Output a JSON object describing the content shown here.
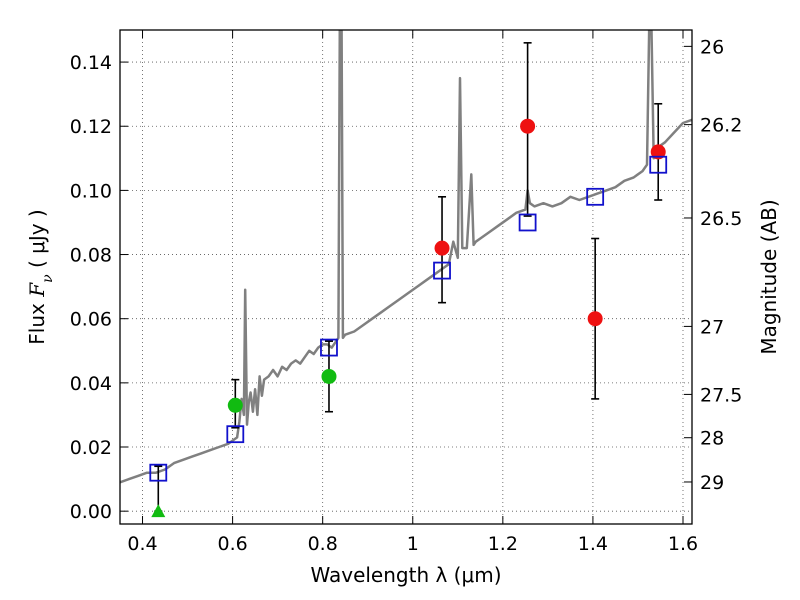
{
  "chart_data": {
    "type": "scatter",
    "xlabel": "Wavelength  λ (μm)",
    "ylabel": "Flux  F_ν  ( μJy )",
    "ylabel_parts": {
      "prefix": "Flux  ",
      "symbol": "F",
      "subscript": "ν",
      "suffix": "  ( μJy )"
    },
    "y2label": "Magnitude (AB)",
    "xlim": [
      0.35,
      1.62
    ],
    "ylim": [
      -0.004,
      0.15
    ],
    "grid": true,
    "x_ticks": [
      0.4,
      0.6,
      0.8,
      1.0,
      1.2,
      1.4,
      1.6
    ],
    "x_tick_labels": [
      "0.4",
      "0.6",
      "0.8",
      "1",
      "1.2",
      "1.4",
      "1.6"
    ],
    "y_ticks": [
      0.0,
      0.02,
      0.04,
      0.06,
      0.08,
      0.1,
      0.12,
      0.14
    ],
    "y_tick_labels": [
      "0.00",
      "0.02",
      "0.04",
      "0.06",
      "0.08",
      "0.10",
      "0.12",
      "0.14"
    ],
    "y2_ticks": [
      {
        "label": "26",
        "flux": 0.1449
      },
      {
        "label": "26.2",
        "flux": 0.1205
      },
      {
        "label": "26.5",
        "flux": 0.0914
      },
      {
        "label": "27",
        "flux": 0.0576
      },
      {
        "label": "27.5",
        "flux": 0.0364
      },
      {
        "label": "28",
        "flux": 0.0229
      },
      {
        "label": "29",
        "flux": 0.0091
      }
    ],
    "colors": {
      "model": "#808080",
      "red_points": "#ee1111",
      "green_points": "#11bb11",
      "squares": "#1111cc",
      "errorbar": "#000000",
      "grid": "#555555"
    },
    "series": [
      {
        "kind": "model-spectrum",
        "x": [
          0.35,
          0.37,
          0.39,
          0.41,
          0.43,
          0.45,
          0.47,
          0.49,
          0.51,
          0.53,
          0.55,
          0.57,
          0.59,
          0.6,
          0.61,
          0.615,
          0.62,
          0.625,
          0.628,
          0.632,
          0.636,
          0.64,
          0.645,
          0.65,
          0.655,
          0.66,
          0.665,
          0.67,
          0.68,
          0.69,
          0.7,
          0.71,
          0.72,
          0.73,
          0.74,
          0.75,
          0.76,
          0.77,
          0.78,
          0.79,
          0.8,
          0.81,
          0.82,
          0.83,
          0.835,
          0.838,
          0.842,
          0.845,
          0.85,
          0.87,
          0.89,
          0.91,
          0.93,
          0.95,
          0.97,
          0.99,
          1.01,
          1.03,
          1.05,
          1.07,
          1.08,
          1.09,
          1.1,
          1.105,
          1.11,
          1.12,
          1.13,
          1.135,
          1.14,
          1.15,
          1.17,
          1.19,
          1.21,
          1.23,
          1.25,
          1.255,
          1.26,
          1.27,
          1.29,
          1.31,
          1.33,
          1.35,
          1.37,
          1.39,
          1.41,
          1.43,
          1.45,
          1.47,
          1.49,
          1.51,
          1.52,
          1.525,
          1.53,
          1.535,
          1.54,
          1.56,
          1.58,
          1.6,
          1.62
        ],
        "y": [
          0.009,
          0.01,
          0.011,
          0.012,
          0.012,
          0.013,
          0.015,
          0.016,
          0.017,
          0.018,
          0.019,
          0.02,
          0.021,
          0.022,
          0.023,
          0.028,
          0.035,
          0.03,
          0.069,
          0.027,
          0.034,
          0.037,
          0.031,
          0.038,
          0.03,
          0.042,
          0.036,
          0.041,
          0.042,
          0.044,
          0.042,
          0.045,
          0.044,
          0.046,
          0.047,
          0.046,
          0.048,
          0.05,
          0.049,
          0.051,
          0.052,
          0.052,
          0.051,
          0.053,
          0.054,
          0.151,
          0.15,
          0.054,
          0.055,
          0.056,
          0.058,
          0.06,
          0.062,
          0.064,
          0.066,
          0.068,
          0.07,
          0.072,
          0.074,
          0.076,
          0.077,
          0.084,
          0.079,
          0.135,
          0.082,
          0.082,
          0.105,
          0.083,
          0.084,
          0.085,
          0.087,
          0.089,
          0.091,
          0.093,
          0.094,
          0.1,
          0.096,
          0.095,
          0.096,
          0.095,
          0.096,
          0.098,
          0.097,
          0.098,
          0.099,
          0.1,
          0.101,
          0.103,
          0.104,
          0.106,
          0.108,
          0.151,
          0.15,
          0.11,
          0.113,
          0.115,
          0.118,
          0.121,
          0.122
        ]
      },
      {
        "kind": "red-circles",
        "points": [
          {
            "x": 1.065,
            "y": 0.082,
            "yerr_low": 0.065,
            "yerr_high": 0.098
          },
          {
            "x": 1.255,
            "y": 0.12,
            "yerr_low": 0.092,
            "yerr_high": 0.146
          },
          {
            "x": 1.405,
            "y": 0.06,
            "yerr_low": 0.035,
            "yerr_high": 0.085
          },
          {
            "x": 1.545,
            "y": 0.112,
            "yerr_low": 0.097,
            "yerr_high": 0.127
          }
        ]
      },
      {
        "kind": "green-circles",
        "points": [
          {
            "x": 0.606,
            "y": 0.033,
            "yerr_low": 0.026,
            "yerr_high": 0.041
          },
          {
            "x": 0.814,
            "y": 0.042,
            "yerr_low": 0.031,
            "yerr_high": 0.053
          }
        ]
      },
      {
        "kind": "green-triangle",
        "points": [
          {
            "x": 0.435,
            "y": 0.0,
            "yerr_low": 0.0,
            "yerr_high": 0.014
          }
        ]
      },
      {
        "kind": "blue-squares",
        "points": [
          {
            "x": 0.435,
            "y": 0.012
          },
          {
            "x": 0.606,
            "y": 0.024
          },
          {
            "x": 0.814,
            "y": 0.051
          },
          {
            "x": 1.065,
            "y": 0.075
          },
          {
            "x": 1.255,
            "y": 0.09
          },
          {
            "x": 1.405,
            "y": 0.098
          },
          {
            "x": 1.545,
            "y": 0.108
          }
        ]
      }
    ]
  }
}
